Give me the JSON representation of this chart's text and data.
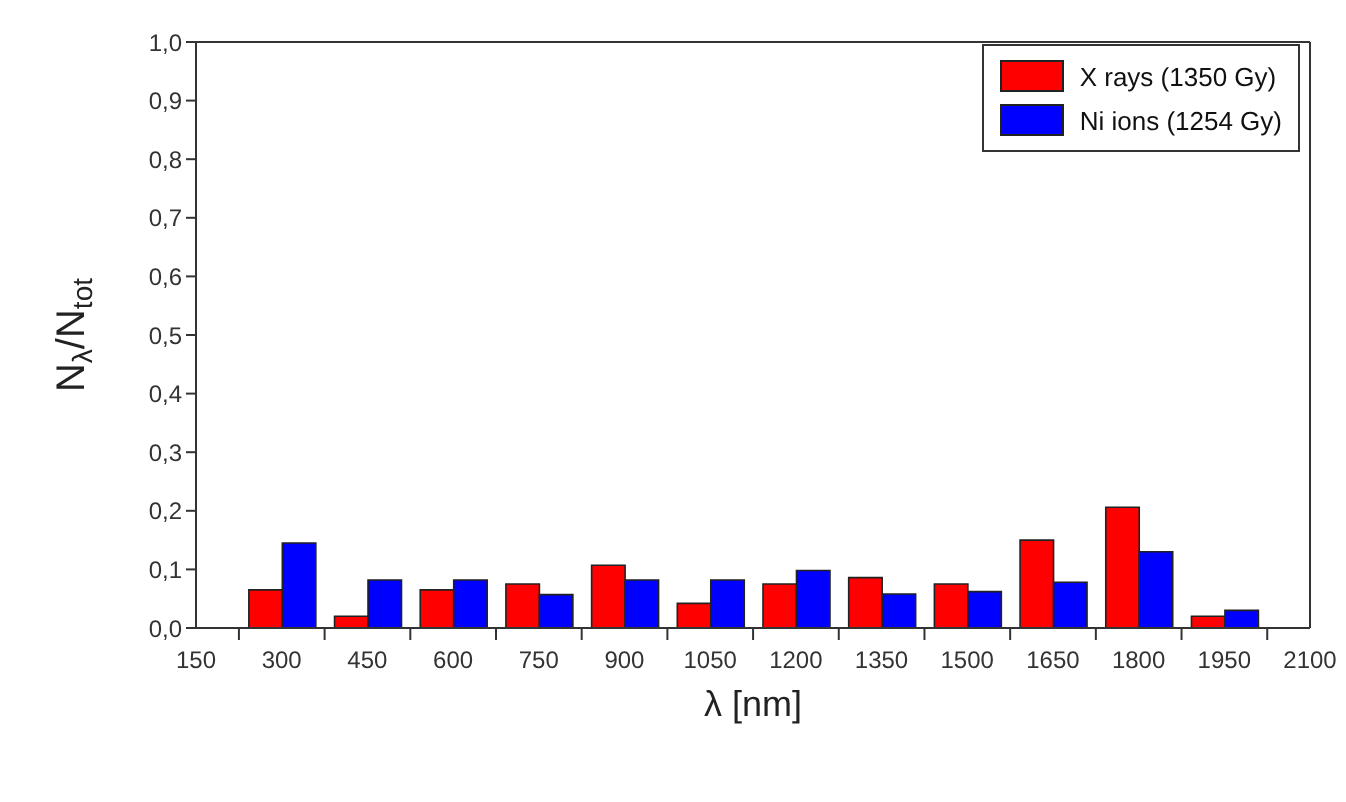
{
  "chart_data": {
    "type": "bar",
    "xlabel": "λ [nm]",
    "ylabel": "N$_{λ}$/N$_{tot}$",
    "x": [
      300,
      450,
      600,
      750,
      900,
      1050,
      1200,
      1350,
      1500,
      1650,
      1800,
      1950
    ],
    "series": [
      {
        "name": "X rays (1350 Gy)",
        "color": "#ff0000",
        "values": [
          0.065,
          0.02,
          0.065,
          0.075,
          0.107,
          0.042,
          0.075,
          0.086,
          0.075,
          0.15,
          0.206,
          0.02
        ]
      },
      {
        "name": "Ni ions (1254 Gy)",
        "color": "#0000ff",
        "values": [
          0.145,
          0.082,
          0.082,
          0.057,
          0.082,
          0.082,
          0.098,
          0.058,
          0.062,
          0.078,
          0.13,
          0.03
        ]
      }
    ],
    "xlim": [
      150,
      2100
    ],
    "xticks": [
      150,
      300,
      450,
      600,
      750,
      900,
      1050,
      1200,
      1350,
      1500,
      1650,
      1800,
      1950,
      2100
    ],
    "ylim": [
      0,
      1
    ],
    "yticks": [
      {
        "value": 0,
        "label": "0,0"
      },
      {
        "value": 0.1,
        "label": "0,1"
      },
      {
        "value": 0.2,
        "label": "0,2"
      },
      {
        "value": 0.3,
        "label": "0,3"
      },
      {
        "value": 0.4,
        "label": "0,4"
      },
      {
        "value": 0.5,
        "label": "0,5"
      },
      {
        "value": 0.6,
        "label": "0,6"
      },
      {
        "value": 0.7,
        "label": "0,7"
      },
      {
        "value": 0.8,
        "label": "0,8"
      },
      {
        "value": 0.9,
        "label": "0,9"
      },
      {
        "value": 1,
        "label": "1,0"
      }
    ],
    "grid": false,
    "legend": "top right"
  }
}
